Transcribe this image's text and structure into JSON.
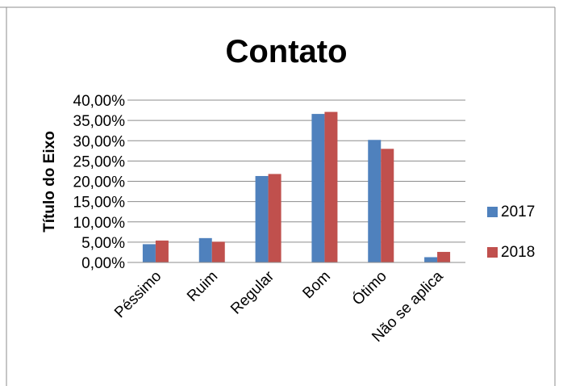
{
  "chart_data": {
    "type": "bar",
    "title": "Contato",
    "xlabel": "",
    "ylabel": "Título do Eixo",
    "categories": [
      "Péssimo",
      "Ruim",
      "Regular",
      "Bom",
      "Ótimo",
      "Não se aplica"
    ],
    "series": [
      {
        "name": "2017",
        "color": "#4f81bd",
        "values": [
          4.5,
          6.0,
          21.3,
          36.6,
          30.2,
          1.3
        ]
      },
      {
        "name": "2018",
        "color": "#c0504d",
        "values": [
          5.4,
          5.1,
          21.8,
          37.1,
          28.0,
          2.6
        ]
      }
    ],
    "ylim": [
      0,
      40
    ],
    "yticks": [
      "0,00%",
      "5,00%",
      "10,00%",
      "15,00%",
      "20,00%",
      "25,00%",
      "30,00%",
      "35,00%",
      "40,00%"
    ],
    "grid": true,
    "legend": "right"
  }
}
